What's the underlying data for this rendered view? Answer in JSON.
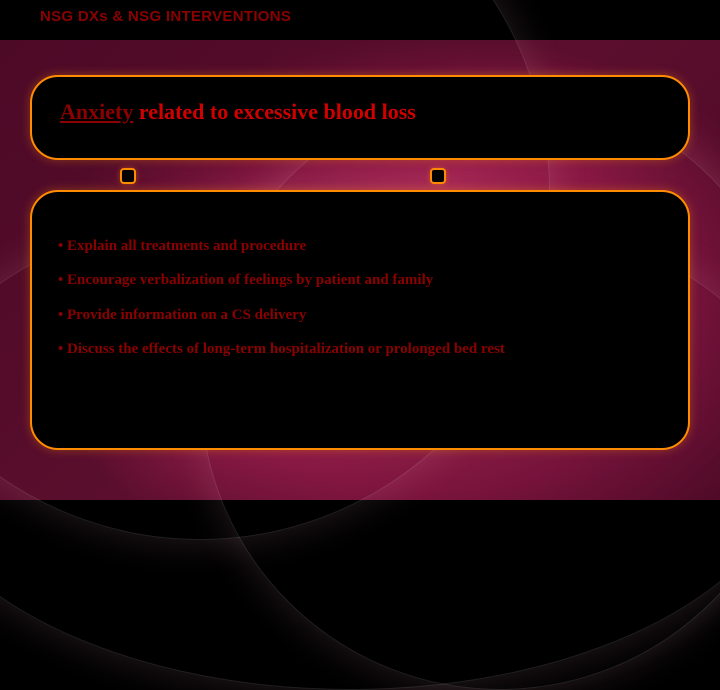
{
  "header": "NSG DXs & NSG INTERVENTIONS",
  "diagnosis": {
    "first": "Anxiety",
    "rest": " related to excessive blood loss"
  },
  "bullets": [
    "Explain all treatments and procedure",
    "Encourage verbalization of feelings by patient and family",
    "Provide information on a CS delivery",
    "Discuss the effects of long-term hospitalization or prolonged bed rest"
  ],
  "colors": {
    "border": "#ff8c00",
    "text_dark_red": "#8b0000",
    "text_red": "#d00000",
    "box_bg": "#000000"
  }
}
